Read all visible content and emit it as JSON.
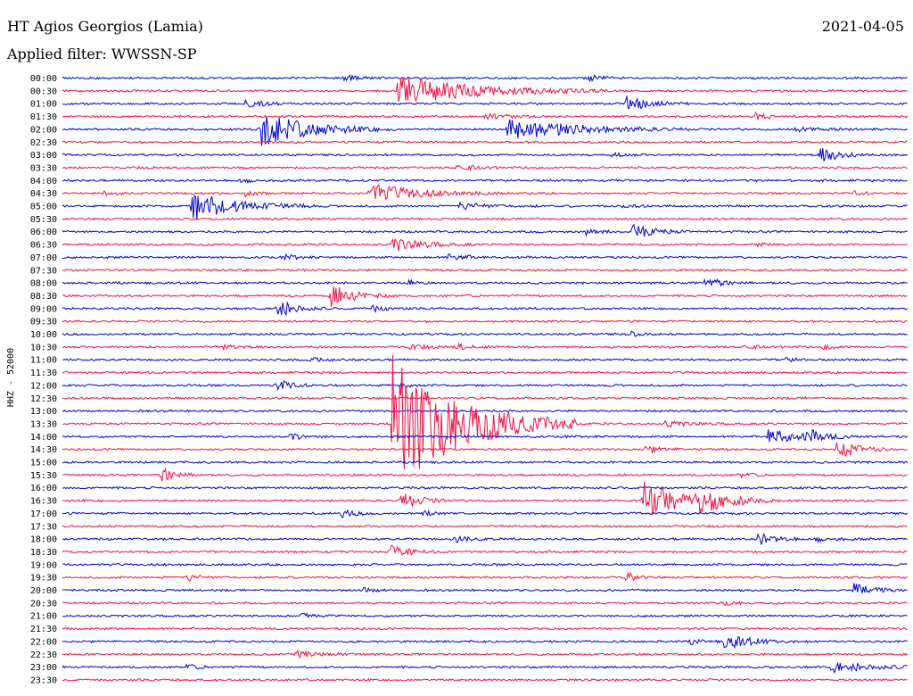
{
  "header": {
    "station": "HT Agios Georgios (Lamia)",
    "filter": "Applied filter: WWSSN-SP",
    "date": "2021-04-05"
  },
  "chart_data": {
    "type": "line",
    "title": "HT Agios Georgios (Lamia)",
    "subtitle": "Applied filter: WWSSN-SP",
    "date": "2021-04-05",
    "ylabel": "HHZ - 52000",
    "line_duration_minutes": 30,
    "row_labels": [
      "00:00",
      "00:30",
      "01:00",
      "01:30",
      "02:00",
      "02:30",
      "03:00",
      "03:30",
      "04:00",
      "04:30",
      "05:00",
      "05:30",
      "06:00",
      "06:30",
      "07:00",
      "07:30",
      "08:00",
      "08:30",
      "09:00",
      "09:30",
      "10:00",
      "10:30",
      "11:00",
      "11:30",
      "12:00",
      "12:30",
      "13:00",
      "13:30",
      "14:00",
      "14:30",
      "15:00",
      "15:30",
      "16:00",
      "16:30",
      "17:00",
      "17:30",
      "18:00",
      "18:30",
      "19:00",
      "19:30",
      "20:00",
      "20:30",
      "21:00",
      "21:30",
      "22:00",
      "22:30",
      "23:00",
      "23:30"
    ],
    "colors": [
      "#0000cc",
      "#ee1144"
    ],
    "grid": false,
    "legend": "none",
    "events": [
      {
        "row": 0,
        "t": 10.0,
        "amp": 3,
        "dur": 0.6
      },
      {
        "row": 0,
        "t": 18.7,
        "amp": 4,
        "dur": 0.5
      },
      {
        "row": 1,
        "t": 11.9,
        "amp": 18,
        "dur": 2.5
      },
      {
        "row": 2,
        "t": 6.5,
        "amp": 5,
        "dur": 0.6
      },
      {
        "row": 2,
        "t": 20.0,
        "amp": 9,
        "dur": 0.8
      },
      {
        "row": 3,
        "t": 15.0,
        "amp": 4,
        "dur": 0.6
      },
      {
        "row": 3,
        "t": 24.6,
        "amp": 4,
        "dur": 0.5
      },
      {
        "row": 4,
        "t": 7.0,
        "amp": 22,
        "dur": 1.6
      },
      {
        "row": 4,
        "t": 15.8,
        "amp": 14,
        "dur": 2.2
      },
      {
        "row": 4,
        "t": 26.0,
        "amp": 3,
        "dur": 1.0
      },
      {
        "row": 6,
        "t": 19.5,
        "amp": 3,
        "dur": 0.5
      },
      {
        "row": 6,
        "t": 26.9,
        "amp": 10,
        "dur": 0.6
      },
      {
        "row": 7,
        "t": 14.0,
        "amp": 4,
        "dur": 0.6
      },
      {
        "row": 8,
        "t": 6.3,
        "amp": 3,
        "dur": 0.5
      },
      {
        "row": 9,
        "t": 1.5,
        "amp": 3,
        "dur": 0.4
      },
      {
        "row": 9,
        "t": 6.5,
        "amp": 3,
        "dur": 0.4
      },
      {
        "row": 9,
        "t": 10.9,
        "amp": 12,
        "dur": 1.6
      },
      {
        "row": 9,
        "t": 28.1,
        "amp": 3,
        "dur": 0.4
      },
      {
        "row": 10,
        "t": 4.6,
        "amp": 18,
        "dur": 1.5
      },
      {
        "row": 10,
        "t": 14.1,
        "amp": 4,
        "dur": 1.0
      },
      {
        "row": 10,
        "t": 19.8,
        "amp": 3,
        "dur": 0.4
      },
      {
        "row": 12,
        "t": 18.6,
        "amp": 4,
        "dur": 0.4
      },
      {
        "row": 12,
        "t": 20.2,
        "amp": 10,
        "dur": 0.7
      },
      {
        "row": 13,
        "t": 11.7,
        "amp": 9,
        "dur": 1.0
      },
      {
        "row": 13,
        "t": 24.6,
        "amp": 3,
        "dur": 0.4
      },
      {
        "row": 14,
        "t": 7.9,
        "amp": 3,
        "dur": 0.4
      },
      {
        "row": 14,
        "t": 13.7,
        "amp": 5,
        "dur": 0.5
      },
      {
        "row": 16,
        "t": 12.3,
        "amp": 3,
        "dur": 0.3
      },
      {
        "row": 16,
        "t": 22.8,
        "amp": 7,
        "dur": 0.6
      },
      {
        "row": 17,
        "t": 9.5,
        "amp": 14,
        "dur": 0.8
      },
      {
        "row": 18,
        "t": 7.6,
        "amp": 12,
        "dur": 0.6
      },
      {
        "row": 18,
        "t": 11.0,
        "amp": 4,
        "dur": 0.5
      },
      {
        "row": 20,
        "t": 20.2,
        "amp": 3,
        "dur": 0.4
      },
      {
        "row": 21,
        "t": 5.7,
        "amp": 3,
        "dur": 0.5
      },
      {
        "row": 21,
        "t": 12.3,
        "amp": 3,
        "dur": 0.6
      },
      {
        "row": 21,
        "t": 14.0,
        "amp": 4,
        "dur": 0.5
      },
      {
        "row": 21,
        "t": 24.2,
        "amp": 3,
        "dur": 0.4
      },
      {
        "row": 21,
        "t": 27.0,
        "amp": 3,
        "dur": 0.4
      },
      {
        "row": 22,
        "t": 8.8,
        "amp": 3,
        "dur": 0.4
      },
      {
        "row": 22,
        "t": 25.6,
        "amp": 3,
        "dur": 0.4
      },
      {
        "row": 24,
        "t": 7.6,
        "amp": 7,
        "dur": 0.6
      },
      {
        "row": 24,
        "t": 12.0,
        "amp": 3,
        "dur": 0.3
      },
      {
        "row": 27,
        "t": 11.7,
        "amp": 90,
        "dur": 2.2
      },
      {
        "row": 27,
        "t": 21.4,
        "amp": 4,
        "dur": 0.8
      },
      {
        "row": 28,
        "t": 8.1,
        "amp": 4,
        "dur": 0.6
      },
      {
        "row": 28,
        "t": 25.0,
        "amp": 10,
        "dur": 1.0
      },
      {
        "row": 28,
        "t": 26.4,
        "amp": 7,
        "dur": 0.6
      },
      {
        "row": 29,
        "t": 20.7,
        "amp": 5,
        "dur": 0.6
      },
      {
        "row": 29,
        "t": 27.5,
        "amp": 12,
        "dur": 0.7
      },
      {
        "row": 31,
        "t": 3.5,
        "amp": 10,
        "dur": 0.5
      },
      {
        "row": 31,
        "t": 24.0,
        "amp": 3,
        "dur": 0.4
      },
      {
        "row": 33,
        "t": 12.0,
        "amp": 12,
        "dur": 0.6
      },
      {
        "row": 33,
        "t": 20.6,
        "amp": 24,
        "dur": 1.6
      },
      {
        "row": 33,
        "t": 22.6,
        "amp": 10,
        "dur": 1.0
      },
      {
        "row": 34,
        "t": 9.9,
        "amp": 4,
        "dur": 0.5
      },
      {
        "row": 34,
        "t": 12.8,
        "amp": 3,
        "dur": 0.4
      },
      {
        "row": 36,
        "t": 13.9,
        "amp": 4,
        "dur": 0.6
      },
      {
        "row": 36,
        "t": 24.7,
        "amp": 8,
        "dur": 0.6
      },
      {
        "row": 36,
        "t": 26.7,
        "amp": 3,
        "dur": 0.7
      },
      {
        "row": 37,
        "t": 11.6,
        "amp": 9,
        "dur": 0.6
      },
      {
        "row": 39,
        "t": 4.4,
        "amp": 4,
        "dur": 0.5
      },
      {
        "row": 39,
        "t": 20.0,
        "amp": 6,
        "dur": 0.4
      },
      {
        "row": 40,
        "t": 10.7,
        "amp": 3,
        "dur": 0.4
      },
      {
        "row": 40,
        "t": 28.1,
        "amp": 8,
        "dur": 0.8
      },
      {
        "row": 41,
        "t": 23.4,
        "amp": 3,
        "dur": 0.4
      },
      {
        "row": 42,
        "t": 8.5,
        "amp": 3,
        "dur": 0.4
      },
      {
        "row": 44,
        "t": 22.3,
        "amp": 3,
        "dur": 0.4
      },
      {
        "row": 44,
        "t": 23.5,
        "amp": 9,
        "dur": 0.9
      },
      {
        "row": 45,
        "t": 8.3,
        "amp": 4,
        "dur": 0.8
      },
      {
        "row": 46,
        "t": 4.3,
        "amp": 3,
        "dur": 0.5
      },
      {
        "row": 46,
        "t": 27.3,
        "amp": 6,
        "dur": 1.5
      }
    ]
  }
}
